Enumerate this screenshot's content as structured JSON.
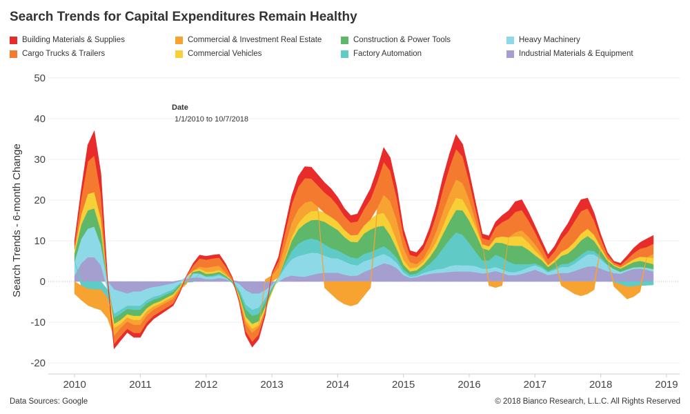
{
  "header": {
    "title": "Search Trends for Capital Expenditures Remain Healthy"
  },
  "tooltip": {
    "label": "Date",
    "value": "1/1/2010 to 10/7/2018"
  },
  "footer": {
    "source": "Data Sources: Google",
    "copyright": "© 2018 Bianco Research, L.L.C. All Rights Reserved"
  },
  "chart_data": {
    "type": "area",
    "title": "Search Trends for Capital Expenditures Remain Healthy",
    "xlabel": "",
    "ylabel": "Search Trends - 6-month Change",
    "x": [
      2010.0,
      2010.1,
      2010.2,
      2010.3,
      2010.4,
      2010.5,
      2010.6,
      2010.7,
      2010.8,
      2010.9,
      2011.0,
      2011.1,
      2011.2,
      2011.3,
      2011.4,
      2011.5,
      2011.6,
      2011.7,
      2011.8,
      2011.9,
      2012.0,
      2012.1,
      2012.2,
      2012.3,
      2012.4,
      2012.5,
      2012.6,
      2012.7,
      2012.8,
      2012.9,
      2013.0,
      2013.1,
      2013.2,
      2013.3,
      2013.4,
      2013.5,
      2013.6,
      2013.7,
      2013.8,
      2013.9,
      2014.0,
      2014.1,
      2014.2,
      2014.3,
      2014.4,
      2014.5,
      2014.6,
      2014.7,
      2014.8,
      2014.9,
      2015.0,
      2015.1,
      2015.2,
      2015.3,
      2015.4,
      2015.5,
      2015.6,
      2015.7,
      2015.8,
      2015.9,
      2016.0,
      2016.1,
      2016.2,
      2016.3,
      2016.4,
      2016.5,
      2016.6,
      2016.7,
      2016.8,
      2016.9,
      2017.0,
      2017.1,
      2017.2,
      2017.3,
      2017.4,
      2017.5,
      2017.6,
      2017.7,
      2017.8,
      2017.9,
      2018.0,
      2018.1,
      2018.2,
      2018.3,
      2018.4,
      2018.5,
      2018.6,
      2018.7,
      2018.8
    ],
    "x_ticks": [
      "2010",
      "2011",
      "2012",
      "2013",
      "2014",
      "2015",
      "2016",
      "2017",
      "2018",
      "2019"
    ],
    "x_range": [
      2009.6,
      2019.2
    ],
    "y_ticks": [
      -20,
      -10,
      0,
      10,
      20,
      30,
      40,
      50
    ],
    "ylim": [
      -21,
      51
    ],
    "grid": "horizontal",
    "legend_position": "top",
    "series": [
      {
        "name": "Industrial Materials & Equipment",
        "color": "#a59fcf",
        "values": [
          1.5,
          4.5,
          6,
          6,
          4,
          0,
          -2,
          -2.5,
          -3,
          -2.5,
          -2.5,
          -1.8,
          -1.4,
          -1.2,
          -0.8,
          -0.5,
          0.3,
          0.7,
          1,
          1,
          0.6,
          0.6,
          0.9,
          0.6,
          0.3,
          -0.6,
          -2.2,
          -3,
          -3,
          -2.2,
          -1,
          0,
          1,
          1.5,
          1.3,
          1.2,
          1.6,
          2,
          2.2,
          2.2,
          2.2,
          1.7,
          1.4,
          1.5,
          2.4,
          3,
          3.8,
          4.5,
          4.2,
          3.3,
          1.6,
          0.9,
          1.1,
          1.6,
          1.9,
          2.1,
          2.2,
          2.4,
          2.5,
          2.5,
          2.5,
          2.3,
          2,
          2.2,
          2.6,
          2.1,
          1.6,
          1.6,
          1.9,
          2.4,
          2.9,
          2.3,
          1.6,
          1.9,
          2.1,
          2.1,
          2.6,
          3.2,
          3.7,
          3.8,
          3.2,
          2.6,
          2.1,
          1.9,
          2.6,
          3.1,
          3.2,
          2.9,
          2.5
        ]
      },
      {
        "name": "Heavy Machinery",
        "color": "#8dd9e8",
        "values": [
          3.5,
          6,
          7,
          7.5,
          5,
          -2,
          -6,
          -4.5,
          -3,
          -3.5,
          -3.5,
          -2.8,
          -2.4,
          -2.2,
          -1.8,
          -1.5,
          -0.5,
          0.5,
          1,
          1,
          0.6,
          0.6,
          0.7,
          0.3,
          -0.2,
          -1.5,
          -3.5,
          -4,
          -3.5,
          -2,
          -0.5,
          1,
          2.5,
          4,
          5,
          5.5,
          5.5,
          5,
          4.2,
          3.6,
          3.5,
          3.3,
          2.9,
          2.5,
          2.6,
          2.5,
          2.4,
          2.3,
          1.8,
          1.3,
          0.7,
          0.3,
          0.3,
          0.5,
          0.7,
          0.9,
          1,
          1.4,
          1.6,
          1.5,
          1.5,
          1.5,
          1.2,
          1,
          1,
          0.9,
          0.8,
          0.7,
          0.9,
          1.1,
          1.1,
          1.1,
          0.7,
          1,
          1.5,
          1.5,
          1.8,
          2.4,
          3,
          2.9,
          2.3,
          1.5,
          1,
          0.5,
          0.4,
          0.4,
          0.4,
          0.5,
          0.6
        ]
      },
      {
        "name": "Factory Automation",
        "color": "#5fcac6",
        "values": [
          0,
          -1,
          -1.8,
          -2,
          -2,
          -2,
          -1,
          -1,
          -0.8,
          -1,
          -1,
          -0.8,
          -0.7,
          -0.6,
          -0.6,
          -0.5,
          -0.4,
          -0.2,
          -0.1,
          0,
          0.1,
          0.3,
          0.3,
          0.2,
          0,
          -0.5,
          -1.2,
          -1.5,
          -1.5,
          -1,
          -0.5,
          0,
          1,
          2,
          3,
          3.5,
          3.5,
          3.2,
          2.8,
          2.4,
          2,
          1.8,
          1.7,
          1.7,
          1.8,
          1.8,
          1.8,
          1.9,
          1.6,
          1.2,
          0.7,
          0.5,
          0.6,
          1,
          1.8,
          3,
          5,
          6.5,
          8,
          7.5,
          5.5,
          3.5,
          2,
          2,
          3,
          3,
          2.5,
          2,
          1.5,
          0.8,
          0.5,
          0.4,
          0.3,
          0.4,
          0.7,
          0.8,
          0.9,
          1,
          1,
          0.8,
          0.6,
          0.1,
          -0.2,
          -0.7,
          -1.3,
          -1.2,
          -1,
          -0.9,
          -0.8
        ]
      },
      {
        "name": "Construction & Power Tools",
        "color": "#5fb86a",
        "values": [
          2,
          3.5,
          4.5,
          4.5,
          3.5,
          0,
          -1.5,
          -1.5,
          -1.3,
          -1.5,
          -1.5,
          -1.2,
          -1,
          -0.9,
          -0.8,
          -0.7,
          -0.4,
          -0.1,
          0.4,
          0.7,
          0.6,
          0.5,
          0.5,
          0.3,
          -0.2,
          -0.8,
          -1.8,
          -2,
          -1.8,
          -1.2,
          -0.5,
          0,
          1,
          2.5,
          3.5,
          4,
          4.5,
          5,
          5.5,
          5.5,
          5,
          4.2,
          3.8,
          4,
          5,
          5.5,
          5.5,
          5,
          3.8,
          2.2,
          1.2,
          0.8,
          0.8,
          1,
          1.6,
          2.4,
          3.5,
          4.5,
          5.5,
          6,
          5.5,
          4.5,
          3,
          2.5,
          3,
          3.5,
          4,
          4.5,
          4.5,
          3.5,
          2,
          1.5,
          1,
          1.5,
          2,
          2.5,
          3,
          3.5,
          3.5,
          2.5,
          1.5,
          1,
          0.8,
          0.8,
          1,
          1.3,
          1.5,
          1.3,
          1.2
        ]
      },
      {
        "name": "Commercial Vehicles",
        "color": "#f7cf36",
        "values": [
          1,
          2.5,
          4,
          4,
          3,
          0,
          -1,
          -1,
          -0.8,
          -1,
          -1,
          -0.8,
          -0.7,
          -0.6,
          -0.6,
          -0.5,
          -0.2,
          0,
          0.3,
          0.5,
          0.5,
          0.5,
          0.5,
          0.3,
          0,
          -0.5,
          -1,
          -1.2,
          -1,
          -0.6,
          -0.2,
          0,
          0.5,
          1,
          1.5,
          2,
          2.2,
          2.2,
          2.2,
          2.2,
          2,
          1.8,
          1.6,
          1.8,
          2,
          2.5,
          3,
          3.2,
          2.8,
          2,
          1.2,
          0.8,
          0.7,
          0.8,
          1.1,
          1.5,
          2,
          2.8,
          3,
          2.7,
          2.2,
          1.6,
          1,
          1,
          1.2,
          1.6,
          2,
          2.3,
          2.3,
          1.8,
          1.2,
          0.8,
          0.5,
          0.7,
          1,
          1.3,
          1.5,
          1.7,
          1.8,
          1.5,
          1,
          0.5,
          0.3,
          0.3,
          0.5,
          0.7,
          1,
          1.3,
          1.5
        ]
      },
      {
        "name": "Commercial & Investment Real Estate",
        "color": "#f7a331",
        "values": [
          -3,
          -3.5,
          -4,
          -4.5,
          -5,
          -5,
          -2,
          -1,
          -1,
          -1.2,
          -1.2,
          -1,
          -0.8,
          -0.6,
          -0.6,
          -0.6,
          -0.5,
          -0.3,
          0,
          0.5,
          1,
          1.2,
          1,
          0.5,
          0,
          -0.3,
          -0.8,
          -1,
          -0.5,
          0.5,
          1.5,
          2.5,
          3,
          3.5,
          3.5,
          3.2,
          2.5,
          1,
          -1.5,
          -3,
          -4.5,
          -5.5,
          -6,
          -5.5,
          -3.5,
          -1.5,
          1.5,
          4.5,
          5.5,
          5,
          3,
          1.5,
          0.8,
          0.8,
          1.5,
          2.5,
          3.5,
          4,
          4.5,
          4,
          3,
          1.5,
          0,
          -1,
          -1.5,
          -1,
          0,
          1,
          1.5,
          1.5,
          1.5,
          0.8,
          0,
          0,
          -1,
          -2,
          -3,
          -3.5,
          -3,
          -2,
          0,
          0,
          -1,
          -2,
          -3,
          -2.5,
          -1.5,
          0,
          1
        ]
      },
      {
        "name": "Cargo Trucks & Trailers",
        "color": "#f47a2f",
        "values": [
          1,
          4,
          8,
          9,
          6,
          0,
          -2,
          -2,
          -1.8,
          -2,
          -2,
          -1.7,
          -1.5,
          -1.4,
          -1.3,
          -1.2,
          -0.6,
          0.2,
          1.2,
          2,
          2,
          2,
          2,
          1.5,
          0.5,
          -0.5,
          -1.8,
          -2.2,
          -1.8,
          -0.8,
          0.5,
          1.5,
          3,
          4.5,
          5.5,
          6,
          5.5,
          5.2,
          5,
          4.7,
          4,
          3.4,
          3.1,
          3.3,
          4,
          5,
          6.5,
          8,
          7.5,
          5.5,
          3,
          1.8,
          1.8,
          2.2,
          3,
          4,
          5.5,
          6.5,
          7.5,
          6.5,
          4.5,
          2.8,
          1.5,
          1.5,
          2.5,
          3.5,
          4.5,
          5,
          5,
          4,
          3,
          2,
          1.5,
          2,
          3,
          4,
          5,
          5.5,
          5,
          3.5,
          2,
          1,
          0.5,
          0.5,
          1,
          1.5,
          2,
          2.5,
          2.5
        ]
      },
      {
        "name": "Building Materials & Supplies",
        "color": "#e82b2b",
        "values": [
          1,
          2,
          4,
          6,
          5,
          1,
          -1,
          -1,
          -0.8,
          -1,
          -1,
          -0.8,
          -0.7,
          -0.6,
          -0.5,
          -0.4,
          -0.2,
          0,
          0.5,
          0.8,
          0.8,
          0.8,
          0.8,
          0.6,
          0.2,
          -0.2,
          -0.8,
          -1.2,
          -1,
          -0.5,
          0.2,
          1,
          1.5,
          2,
          2.5,
          2.8,
          2.8,
          2.6,
          2.4,
          2.2,
          2,
          1.8,
          1.7,
          1.8,
          2,
          2.5,
          3,
          3.5,
          3.2,
          2.5,
          1.5,
          1,
          1,
          1.2,
          1.6,
          2.2,
          2.8,
          3.2,
          3.5,
          3,
          2.2,
          1.5,
          1,
          1,
          1.3,
          1.6,
          2,
          2.5,
          2.5,
          2,
          1.5,
          1.2,
          1,
          1.2,
          1.5,
          2,
          2.5,
          2.8,
          2.5,
          1.8,
          1,
          0.5,
          0.3,
          0.5,
          0.8,
          1.2,
          1.5,
          2,
          2
        ]
      }
    ]
  }
}
